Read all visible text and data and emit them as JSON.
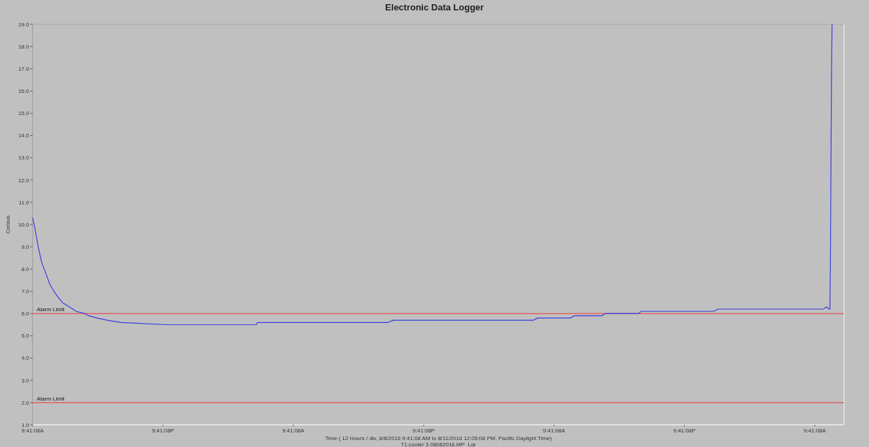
{
  "chart_data": {
    "type": "line",
    "title": "Electronic Data Logger",
    "xlabel": "Time ( 12 Hours / div, 8/8/2016 9:41:08 AM to 8/11/2016 12:05:08 PM, Pacific Daylight Time)",
    "ylabel": "Celsius",
    "annotations": [
      "T1:cooler 3 08082016.MP_Lgr"
    ],
    "xlim": [
      "2016-08-08T09:41",
      "2016-08-11T12:23"
    ],
    "xticks": [
      {
        "value": "2016-08-08T09:41",
        "label": "9:41:08A"
      },
      {
        "value": "2016-08-08T21:41",
        "label": "9:41:08P"
      },
      {
        "value": "2016-08-09T09:41",
        "label": "9:41:08A"
      },
      {
        "value": "2016-08-09T21:41",
        "label": "9:41:08P"
      },
      {
        "value": "2016-08-10T09:41",
        "label": "9:41:08A"
      },
      {
        "value": "2016-08-10T21:41",
        "label": "9:41:08P"
      },
      {
        "value": "2016-08-11T09:41",
        "label": "9:41:08A"
      }
    ],
    "ylim": [
      1,
      19
    ],
    "yticks": [
      {
        "value": 1,
        "label": "1.0"
      },
      {
        "value": 2,
        "label": "2.0"
      },
      {
        "value": 3,
        "label": "3.0"
      },
      {
        "value": 4,
        "label": "4.0"
      },
      {
        "value": 5,
        "label": "5.0"
      },
      {
        "value": 6,
        "label": "6.0"
      },
      {
        "value": 7,
        "label": "7.0"
      },
      {
        "value": 8,
        "label": "8.0"
      },
      {
        "value": 9,
        "label": "9.0"
      },
      {
        "value": 10,
        "label": "10.0"
      },
      {
        "value": 11,
        "label": "11.0"
      },
      {
        "value": 12,
        "label": "12.0"
      },
      {
        "value": 13,
        "label": "13.0"
      },
      {
        "value": 14,
        "label": "14.0"
      },
      {
        "value": 15,
        "label": "15.0"
      },
      {
        "value": 16,
        "label": "16.0"
      },
      {
        "value": 17,
        "label": "17.0"
      },
      {
        "value": 18,
        "label": "18.0"
      },
      {
        "value": 19,
        "label": "19.0"
      }
    ],
    "grid": false,
    "marker": "none",
    "line_style": "solid",
    "series": [
      {
        "color": "#3a3ae0",
        "x": [
          "2016-08-08T09:41",
          "2016-08-08T09:52",
          "2016-08-08T10:12",
          "2016-08-08T10:31",
          "2016-08-08T10:54",
          "2016-08-08T11:17",
          "2016-08-08T11:47",
          "2016-08-08T12:25",
          "2016-08-08T13:04",
          "2016-08-08T13:42",
          "2016-08-08T14:28",
          "2016-08-08T14:51",
          "2016-08-08T15:37",
          "2016-08-08T16:34",
          "2016-08-08T17:51",
          "2016-08-08T21:59",
          "2016-08-09T06:17",
          "2016-08-09T06:23",
          "2016-08-09T18:23",
          "2016-08-09T18:53",
          "2016-08-10T07:47",
          "2016-08-10T08:11",
          "2016-08-10T11:11",
          "2016-08-10T11:35",
          "2016-08-10T14:05",
          "2016-08-10T14:23",
          "2016-08-10T17:29",
          "2016-08-10T17:41",
          "2016-08-11T00:23",
          "2016-08-11T00:47",
          "2016-08-11T10:29",
          "2016-08-11T10:47",
          "2016-08-11T10:59",
          "2016-08-11T11:05",
          "2016-08-11T11:08",
          "2016-08-11T11:11",
          "2016-08-11T11:14",
          "2016-08-11T11:17"
        ],
        "values": [
          10.3,
          9.9,
          9.0,
          8.3,
          7.8,
          7.3,
          6.9,
          6.5,
          6.3,
          6.1,
          6.0,
          5.9,
          5.8,
          5.7,
          5.6,
          5.5,
          5.5,
          5.6,
          5.6,
          5.7,
          5.7,
          5.8,
          5.8,
          5.9,
          5.9,
          6.0,
          6.0,
          6.1,
          6.1,
          6.2,
          6.2,
          6.3,
          6.2,
          6.2,
          8.5,
          13.0,
          17.0,
          19.0
        ]
      }
    ],
    "ref_lines": [
      {
        "axis": "y",
        "value": 6,
        "label": "Alarm Limit",
        "color": "#e06060"
      },
      {
        "axis": "y",
        "value": 2,
        "label": "Alarm Limit",
        "color": "#e06060"
      }
    ]
  }
}
